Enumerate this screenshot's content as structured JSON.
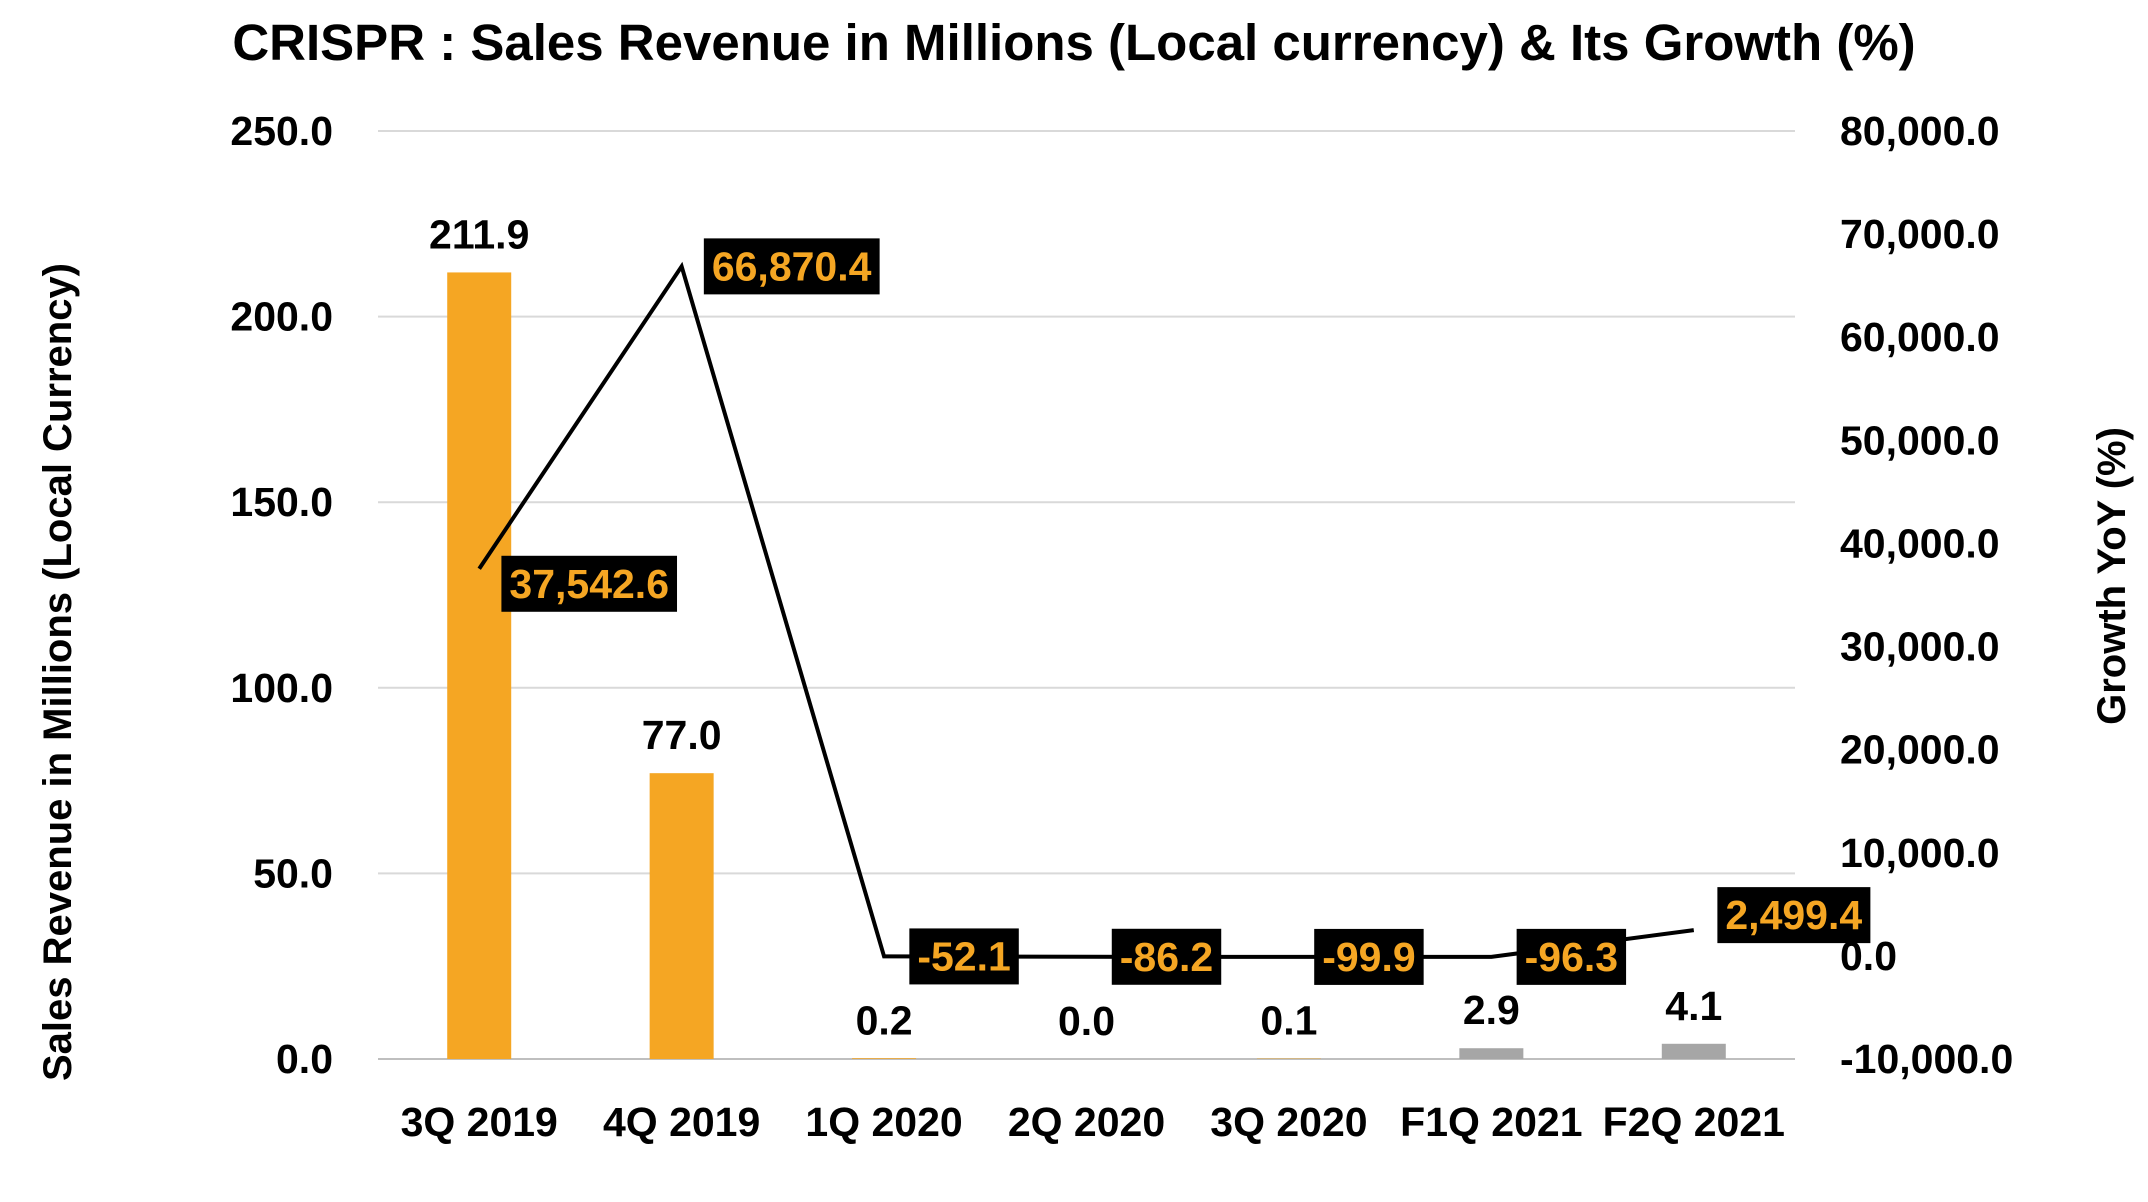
{
  "chart_data": {
    "type": "bar",
    "title": "CRISPR : Sales Revenue in Millions (Local currency) & Its Growth (%)",
    "ylabel": "Sales Revenue in Millions (Local Currency)",
    "y2label": "Growth YoY (%)",
    "categories": [
      "3Q 2019",
      "4Q 2019",
      "1Q 2020",
      "2Q 2020",
      "3Q 2020",
      "F1Q 2021",
      "F2Q 2021"
    ],
    "ylim": [
      0,
      250
    ],
    "y2lim": [
      -10000,
      80000
    ],
    "yticks": [
      "0.0",
      "50.0",
      "100.0",
      "150.0",
      "200.0",
      "250.0"
    ],
    "y2ticks": [
      "-10,000.0",
      "0.0",
      "10,000.0",
      "20,000.0",
      "30,000.0",
      "40,000.0",
      "50,000.0",
      "60,000.0",
      "70,000.0",
      "80,000.0"
    ],
    "grid": true,
    "series": [
      {
        "name": "Sales Revenue",
        "type": "bar",
        "axis": "left",
        "values": [
          211.9,
          77.0,
          0.2,
          0.0,
          0.1,
          2.9,
          4.1
        ],
        "labels": [
          "211.9",
          "77.0",
          "0.2",
          "0.0",
          "0.1",
          "2.9",
          "4.1"
        ],
        "colors": [
          "#f5a623",
          "#f5a623",
          "#f5a623",
          "#f5a623",
          "#f5a623",
          "#a6a6a6",
          "#a6a6a6"
        ]
      },
      {
        "name": "Growth YoY",
        "type": "line",
        "axis": "right",
        "values": [
          37542.6,
          66870.4,
          -52.1,
          -86.2,
          -99.9,
          -96.3,
          2499.4
        ],
        "labels": [
          "37,542.6",
          "66,870.4",
          "-52.1",
          "-86.2",
          "-99.9",
          "-96.3",
          "2,499.4"
        ],
        "color": "#000000",
        "label_color": "#f5a623",
        "label_background": "#000000"
      }
    ]
  }
}
